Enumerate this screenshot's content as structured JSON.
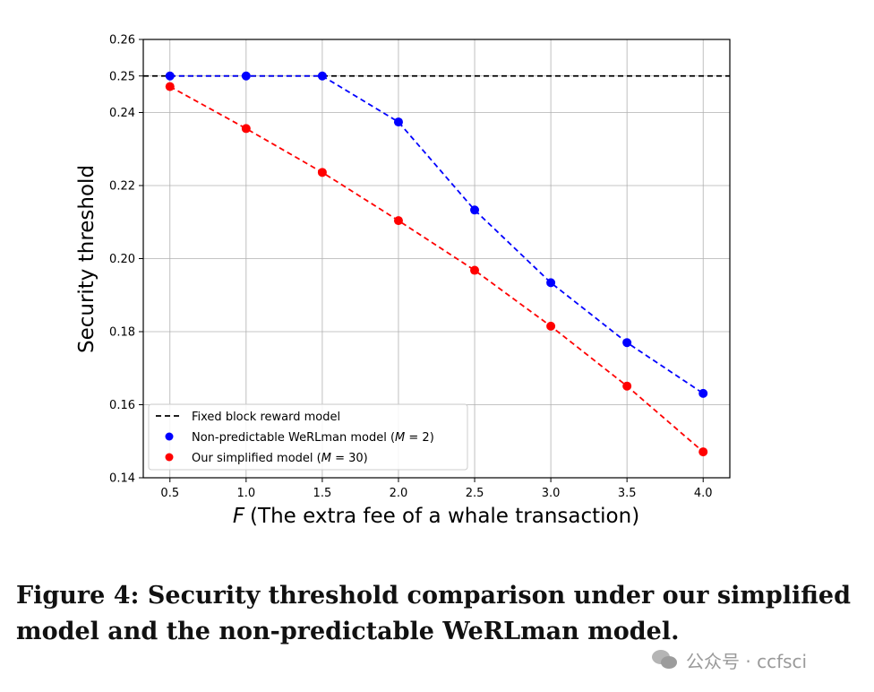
{
  "chart_data": {
    "type": "line",
    "xlabel": "(The extra fee of a whale transaction)",
    "xlabel_var": "F",
    "ylabel": "Security threshold",
    "xlim": [
      0.325,
      4.175
    ],
    "ylim": [
      0.14,
      0.26
    ],
    "x_ticks": [
      0.5,
      1.0,
      1.5,
      2.0,
      2.5,
      3.0,
      3.5,
      4.0
    ],
    "x_tick_labels": [
      "0.5",
      "1.0",
      "1.5",
      "2.0",
      "2.5",
      "3.0",
      "3.5",
      "4.0"
    ],
    "y_ticks": [
      0.14,
      0.16,
      0.18,
      0.2,
      0.22,
      0.24,
      0.25,
      0.26
    ],
    "y_tick_labels": [
      "0.14",
      "0.16",
      "0.18",
      "0.20",
      "0.22",
      "0.24",
      "0.25",
      "0.26"
    ],
    "grid": true,
    "legend_position": "lower-left",
    "reference_line": {
      "name": "Fixed block reward model",
      "y": 0.25,
      "color": "#000000",
      "style": "dashed"
    },
    "series": [
      {
        "name": "Non-predictable WeRLman model (",
        "name_var": "M",
        "name_suffix": " = 2)",
        "color": "#0000ff",
        "x": [
          0.5,
          1.0,
          1.5,
          2.0,
          2.5,
          3.0,
          3.5,
          4.0
        ],
        "y": [
          0.25,
          0.25,
          0.25,
          0.2374,
          0.2133,
          0.1934,
          0.177,
          0.1631
        ]
      },
      {
        "name": "Our simplified model (",
        "name_var": "M",
        "name_suffix": " = 30)",
        "color": "#ff0000",
        "x": [
          0.5,
          1.0,
          1.5,
          2.0,
          2.5,
          3.0,
          3.5,
          4.0
        ],
        "y": [
          0.2471,
          0.2356,
          0.2236,
          0.2104,
          0.1968,
          0.1815,
          0.1651,
          0.1471
        ]
      }
    ]
  },
  "caption": "Figure 4: Security threshold comparison under our simplified model and the non-predictable WeRLman model.",
  "watermark": "公众号 · ccfsci"
}
